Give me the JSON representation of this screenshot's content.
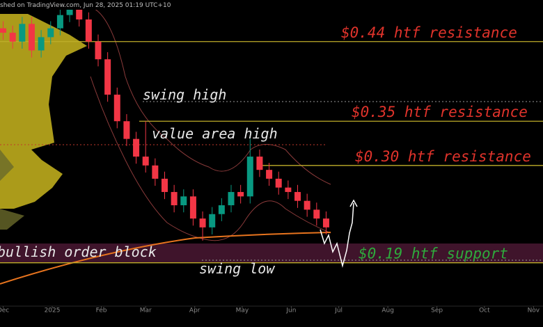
{
  "chart_data": {
    "type": "candlestick",
    "subtitle": "shed on TradingView.com, Jun 28, 2025 01:19 UTC+10",
    "x": [
      0,
      6,
      12,
      18,
      24,
      30,
      36,
      42,
      48,
      54,
      60,
      66,
      72,
      78,
      84,
      90,
      96,
      102,
      108,
      114,
      120,
      126,
      132,
      138,
      144,
      150,
      156,
      162,
      168,
      174,
      180,
      186,
      192,
      198,
      204
    ],
    "open": [
      0.455,
      0.45,
      0.44,
      0.46,
      0.43,
      0.445,
      0.455,
      0.47,
      0.48,
      0.465,
      0.44,
      0.42,
      0.38,
      0.35,
      0.33,
      0.31,
      0.3,
      0.285,
      0.27,
      0.255,
      0.265,
      0.24,
      0.23,
      0.245,
      0.255,
      0.27,
      0.265,
      0.31,
      0.295,
      0.285,
      0.275,
      0.27,
      0.26,
      0.25,
      0.24
    ],
    "high": [
      0.463,
      0.458,
      0.468,
      0.468,
      0.453,
      0.463,
      0.478,
      0.488,
      0.488,
      0.473,
      0.448,
      0.428,
      0.388,
      0.358,
      0.338,
      0.35,
      0.308,
      0.293,
      0.278,
      0.273,
      0.273,
      0.248,
      0.253,
      0.263,
      0.278,
      0.278,
      0.33,
      0.318,
      0.303,
      0.293,
      0.283,
      0.278,
      0.268,
      0.258,
      0.248
    ],
    "low": [
      0.442,
      0.432,
      0.432,
      0.422,
      0.422,
      0.437,
      0.447,
      0.462,
      0.457,
      0.432,
      0.412,
      0.372,
      0.342,
      0.322,
      0.302,
      0.292,
      0.277,
      0.262,
      0.247,
      0.247,
      0.232,
      0.215,
      0.222,
      0.237,
      0.247,
      0.257,
      0.257,
      0.287,
      0.277,
      0.267,
      0.262,
      0.252,
      0.242,
      0.232,
      0.222
    ],
    "close": [
      0.45,
      0.44,
      0.46,
      0.43,
      0.445,
      0.455,
      0.47,
      0.48,
      0.465,
      0.44,
      0.42,
      0.38,
      0.35,
      0.33,
      0.31,
      0.3,
      0.285,
      0.27,
      0.255,
      0.265,
      0.24,
      0.23,
      0.245,
      0.255,
      0.27,
      0.265,
      0.31,
      0.295,
      0.285,
      0.275,
      0.27,
      0.26,
      0.25,
      0.24,
      0.23
    ],
    "up_color": "#089981",
    "down_color": "#f23645",
    "xlim": [
      -2,
      341
    ],
    "ylim": [
      0.141,
      0.487
    ],
    "xticks": [
      {
        "value": 0,
        "label": "Dec"
      },
      {
        "value": 31,
        "label": "2025"
      },
      {
        "value": 62,
        "label": "Feb"
      },
      {
        "value": 90,
        "label": "Mar"
      },
      {
        "value": 121,
        "label": "Apr"
      },
      {
        "value": 151,
        "label": "May"
      },
      {
        "value": 182,
        "label": "Jun"
      },
      {
        "value": 212,
        "label": "Jul"
      },
      {
        "value": 243,
        "label": "Aug"
      },
      {
        "value": 274,
        "label": "Sep"
      },
      {
        "value": 304,
        "label": "Oct"
      },
      {
        "value": 335,
        "label": "Nov"
      }
    ],
    "levels": [
      {
        "label": "$0.44 htf resistance",
        "value": 0.44,
        "color": "#e0332b"
      },
      {
        "label": "$0.35 htf resistance",
        "value": 0.35,
        "color": "#e0332b"
      },
      {
        "label": "$0.30 htf resistance",
        "value": 0.3,
        "color": "#e0332b"
      },
      {
        "label": "$0.19 htf support",
        "value": 0.19,
        "color": "#2eaa3c"
      }
    ],
    "annotations": [
      "swing high",
      "value area high",
      "swing low",
      "bullish order block"
    ]
  }
}
